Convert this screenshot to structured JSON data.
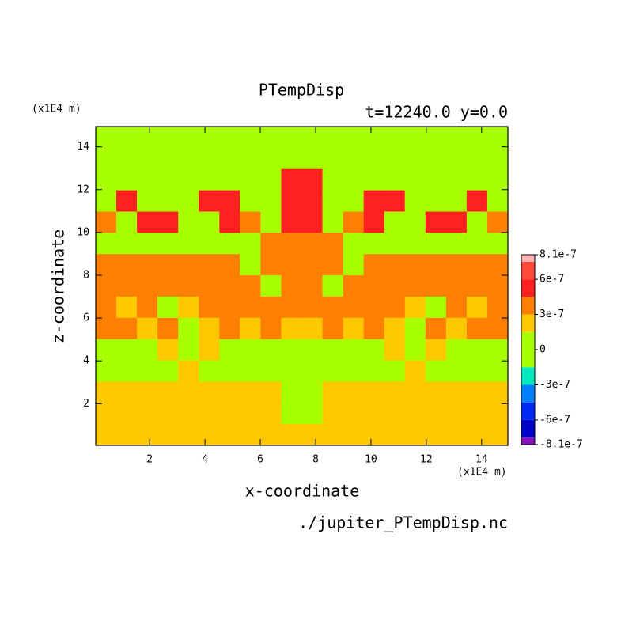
{
  "chart_data": {
    "type": "contour",
    "title": "PTempDisp",
    "subtitle": "t=12240.0 y=0.0",
    "x_label": "x-coordinate",
    "y_label": "z-coordinate",
    "x_unit": "(x1E4 m)",
    "y_unit": "(x1E4 m)",
    "source": "./jupiter_PTempDisp.nc",
    "xlim": [
      0.05,
      14.95
    ],
    "ylim": [
      0.05,
      14.95
    ],
    "xticks": [
      2,
      4,
      6,
      8,
      10,
      12,
      14
    ],
    "yticks": [
      2,
      4,
      6,
      8,
      10,
      12,
      14
    ],
    "x": [
      0.42,
      1.17,
      1.91,
      2.66,
      3.4,
      4.15,
      4.89,
      5.64,
      6.38,
      7.13,
      7.87,
      8.62,
      9.36,
      10.11,
      10.85,
      11.6,
      12.34,
      13.09,
      13.83,
      14.58
    ],
    "y": [
      14.45,
      13.46,
      12.47,
      11.47,
      10.48,
      9.49,
      8.49,
      7.5,
      6.51,
      5.51,
      4.52,
      3.53,
      2.53,
      1.54,
      0.55
    ],
    "z": [
      [
        0,
        0,
        0,
        0,
        0,
        0,
        0,
        0,
        0,
        0,
        0,
        0,
        0,
        0,
        0,
        0,
        0,
        0,
        0,
        0
      ],
      [
        0,
        0,
        0,
        0,
        0,
        0,
        0,
        0,
        0,
        0,
        0,
        0,
        0,
        0,
        0,
        0,
        0,
        0,
        0,
        0
      ],
      [
        0,
        0,
        0,
        0,
        0,
        0,
        0,
        0,
        0,
        5.2e-07,
        5.2e-07,
        0,
        0,
        0,
        0,
        0,
        0,
        0,
        0,
        0
      ],
      [
        0,
        5.2e-07,
        0,
        0,
        0,
        5.2e-07,
        5.2e-07,
        0,
        0,
        5.2e-07,
        5.2e-07,
        0,
        0,
        5.2e-07,
        5.2e-07,
        0,
        0,
        0,
        5.2e-07,
        0
      ],
      [
        3.7e-07,
        0,
        5.2e-07,
        5.2e-07,
        0,
        0,
        5.2e-07,
        3.7e-07,
        0,
        5.2e-07,
        5.2e-07,
        0,
        3.7e-07,
        5.2e-07,
        0,
        0,
        5.2e-07,
        5.2e-07,
        0,
        3.7e-07
      ],
      [
        0,
        0,
        0,
        0,
        0,
        0,
        0,
        0,
        3.7e-07,
        3.7e-07,
        3.7e-07,
        3.7e-07,
        0,
        0,
        0,
        0,
        0,
        0,
        0,
        0
      ],
      [
        3.7e-07,
        3.7e-07,
        3.7e-07,
        3.7e-07,
        3.7e-07,
        3.7e-07,
        3.7e-07,
        0,
        3.7e-07,
        3.7e-07,
        3.7e-07,
        3.7e-07,
        0,
        3.7e-07,
        3.7e-07,
        3.7e-07,
        3.7e-07,
        3.7e-07,
        3.7e-07,
        3.7e-07
      ],
      [
        3.7e-07,
        3.7e-07,
        3.7e-07,
        3.7e-07,
        3.7e-07,
        3.7e-07,
        3.7e-07,
        3.7e-07,
        0,
        3.7e-07,
        3.7e-07,
        0,
        3.7e-07,
        3.7e-07,
        3.7e-07,
        3.7e-07,
        3.7e-07,
        3.7e-07,
        3.7e-07,
        3.7e-07
      ],
      [
        3.7e-07,
        2.2e-07,
        3.7e-07,
        0,
        2.2e-07,
        3.7e-07,
        3.7e-07,
        3.7e-07,
        3.7e-07,
        3.7e-07,
        3.7e-07,
        3.7e-07,
        3.7e-07,
        3.7e-07,
        3.7e-07,
        2.2e-07,
        0,
        3.7e-07,
        2.2e-07,
        3.7e-07
      ],
      [
        3.7e-07,
        3.7e-07,
        2.2e-07,
        3.7e-07,
        0,
        2.2e-07,
        3.7e-07,
        2.2e-07,
        3.7e-07,
        2.2e-07,
        2.2e-07,
        3.7e-07,
        2.2e-07,
        3.7e-07,
        2.2e-07,
        0,
        3.7e-07,
        2.2e-07,
        3.7e-07,
        3.7e-07
      ],
      [
        0,
        0,
        0,
        2.2e-07,
        0,
        2.2e-07,
        0,
        0,
        0,
        0,
        0,
        0,
        0,
        0,
        2.2e-07,
        0,
        2.2e-07,
        0,
        0,
        0
      ],
      [
        0,
        0,
        0,
        0,
        2.2e-07,
        0,
        0,
        0,
        0,
        0,
        0,
        0,
        0,
        0,
        0,
        2.2e-07,
        0,
        0,
        0,
        0
      ],
      [
        2.2e-07,
        2.2e-07,
        2.2e-07,
        2.2e-07,
        2.2e-07,
        2.2e-07,
        2.2e-07,
        2.2e-07,
        2.2e-07,
        0,
        0,
        2.2e-07,
        2.2e-07,
        2.2e-07,
        2.2e-07,
        2.2e-07,
        2.2e-07,
        2.2e-07,
        2.2e-07,
        2.2e-07
      ],
      [
        2.2e-07,
        2.2e-07,
        2.2e-07,
        2.2e-07,
        2.2e-07,
        2.2e-07,
        2.2e-07,
        2.2e-07,
        2.2e-07,
        0,
        0,
        2.2e-07,
        2.2e-07,
        2.2e-07,
        2.2e-07,
        2.2e-07,
        2.2e-07,
        2.2e-07,
        2.2e-07,
        2.2e-07
      ],
      [
        2.2e-07,
        2.2e-07,
        2.2e-07,
        2.2e-07,
        2.2e-07,
        2.2e-07,
        2.2e-07,
        2.2e-07,
        2.2e-07,
        2.2e-07,
        2.2e-07,
        2.2e-07,
        2.2e-07,
        2.2e-07,
        2.2e-07,
        2.2e-07,
        2.2e-07,
        2.2e-07,
        2.2e-07,
        2.2e-07
      ]
    ],
    "levels": [
      -8.1e-07,
      -7.5e-07,
      -6e-07,
      -4.5e-07,
      -3e-07,
      -1.5e-07,
      1.5e-07,
      3e-07,
      4.5e-07,
      6e-07,
      7.5e-07,
      8.1e-07
    ],
    "colors": [
      "#8a10b8",
      "#0000c8",
      "#0028f0",
      "#0080ff",
      "#00e8c0",
      "#a8ff00",
      "#ffc800",
      "#ff8000",
      "#ff2020",
      "#ff4838",
      "#ffb0b0"
    ],
    "colorbar_ticks": [
      {
        "value": 8.1e-07,
        "label": "8.1e-7"
      },
      {
        "value": 6e-07,
        "label": "6e-7"
      },
      {
        "value": 3e-07,
        "label": "3e-7"
      },
      {
        "value": 0,
        "label": "0"
      },
      {
        "value": -3e-07,
        "label": "-3e-7"
      },
      {
        "value": -6e-07,
        "label": "-6e-7"
      },
      {
        "value": -8.1e-07,
        "label": "-8.1e-7"
      }
    ]
  }
}
